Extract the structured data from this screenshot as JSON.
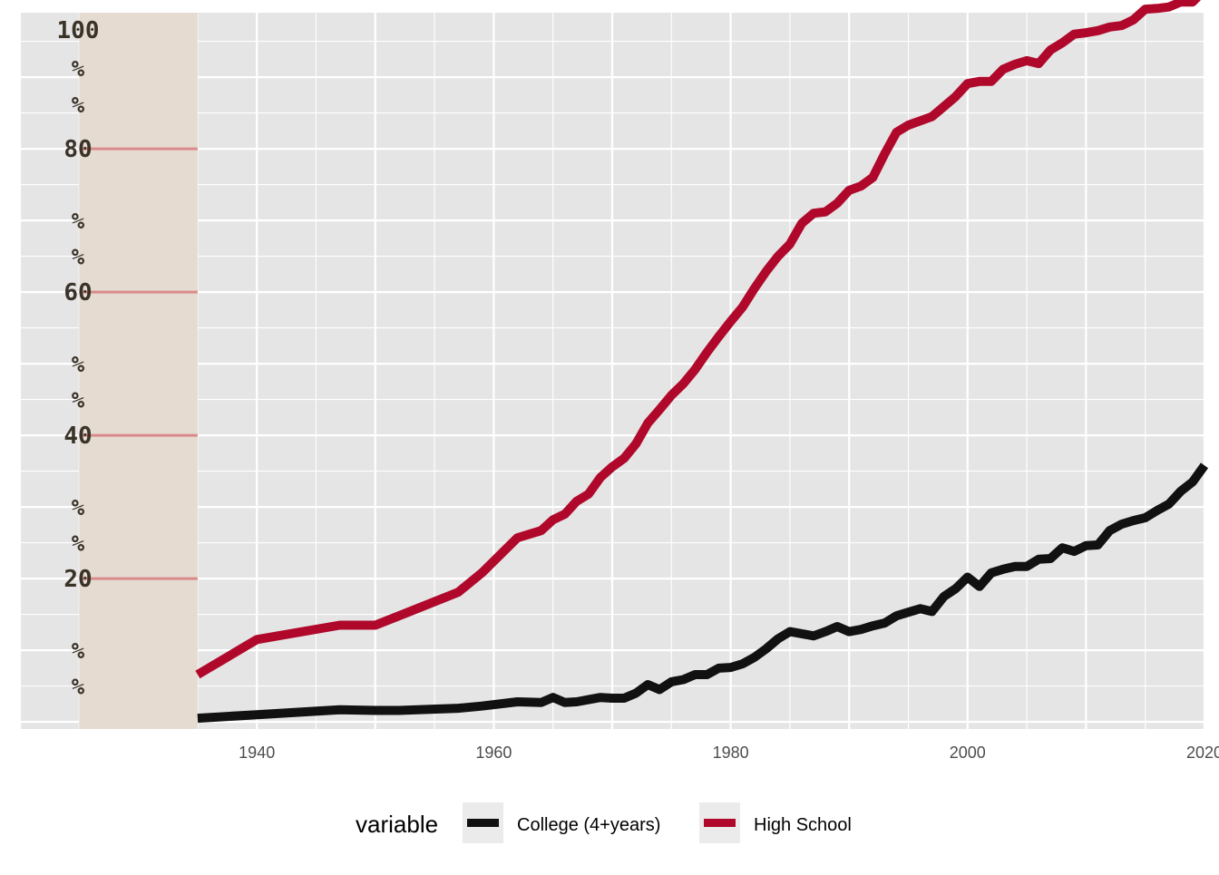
{
  "chart_data": {
    "type": "line",
    "title": "",
    "xlabel": "",
    "ylabel": "",
    "xlim": [
      1920,
      2020
    ],
    "ylim": [
      -1,
      99
    ],
    "x_ticks": [
      1940,
      1960,
      1980,
      2000,
      2020
    ],
    "x_minor": [
      1930,
      1950,
      1970,
      1990,
      2010
    ],
    "y_ticks": [
      {
        "value": 100,
        "label": "100"
      },
      {
        "value": 80,
        "label": "80"
      },
      {
        "value": 60,
        "label": "60"
      },
      {
        "value": 40,
        "label": "40"
      },
      {
        "value": 20,
        "label": "20"
      }
    ],
    "y_pct_marks": [
      90,
      85,
      70,
      65,
      50,
      45,
      30,
      25,
      10,
      5
    ],
    "pct_symbol": "%",
    "grid": true,
    "shaded_region": {
      "x_from": 1925,
      "x_to": 1935
    },
    "reference_lines": [
      80,
      60,
      40,
      20
    ],
    "colors": {
      "panel": "#e5e5e5",
      "grid": "#ffffff",
      "shade": "#e6dbd1",
      "refline": "#d98b8b"
    },
    "legend": {
      "title": "variable",
      "position": "bottom"
    },
    "series": [
      {
        "name": "College (4+years)",
        "color": "#111111",
        "x": [
          1935,
          1940,
          1947,
          1950,
          1952,
          1957,
          1959,
          1962,
          1964,
          1965,
          1966,
          1967,
          1968,
          1969,
          1970,
          1971,
          1972,
          1973,
          1974,
          1975,
          1976,
          1977,
          1978,
          1979,
          1980,
          1981,
          1982,
          1983,
          1984,
          1985,
          1986,
          1987,
          1988,
          1989,
          1990,
          1991,
          1992,
          1993,
          1994,
          1995,
          1996,
          1997,
          1998,
          1999,
          2000,
          2001,
          2002,
          2003,
          2004,
          2005,
          2006,
          2007,
          2008,
          2009,
          2010,
          2011,
          2012,
          2013,
          2014,
          2015,
          2016,
          2017,
          2018,
          2019,
          2020
        ],
        "values": [
          0.5,
          1.0,
          1.7,
          1.6,
          1.6,
          1.9,
          2.2,
          2.8,
          2.7,
          3.4,
          2.7,
          2.8,
          3.1,
          3.4,
          3.3,
          3.3,
          4.0,
          5.2,
          4.5,
          5.6,
          5.9,
          6.6,
          6.6,
          7.5,
          7.6,
          8.1,
          9.0,
          10.2,
          11.6,
          12.6,
          12.3,
          12.0,
          12.6,
          13.3,
          12.6,
          12.9,
          13.4,
          13.8,
          14.8,
          15.3,
          15.8,
          15.4,
          17.5,
          18.6,
          20.2,
          18.9,
          20.8,
          21.3,
          21.7,
          21.7,
          22.7,
          22.8,
          24.3,
          23.8,
          24.6,
          24.7,
          26.7,
          27.6,
          28.1,
          28.5,
          29.5,
          30.4,
          32.2,
          33.5,
          35.8
        ]
      },
      {
        "name": "High School",
        "color": "#b0082a",
        "x": [
          1935,
          1940,
          1947,
          1950,
          1952,
          1957,
          1959,
          1962,
          1964,
          1965,
          1966,
          1967,
          1968,
          1969,
          1970,
          1971,
          1972,
          1973,
          1974,
          1975,
          1976,
          1977,
          1978,
          1979,
          1980,
          1981,
          1982,
          1983,
          1984,
          1985,
          1986,
          1987,
          1988,
          1989,
          1990,
          1991,
          1992,
          1993,
          1994,
          1995,
          1996,
          1997,
          1998,
          1999,
          2000,
          2001,
          2002,
          2003,
          2004,
          2005,
          2006,
          2007,
          2008,
          2009,
          2010,
          2011,
          2012,
          2013,
          2014,
          2015,
          2016,
          2017,
          2018,
          2019,
          2020
        ],
        "values": [
          6.6,
          11.5,
          13.5,
          13.5,
          14.8,
          18.1,
          20.8,
          25.7,
          26.7,
          28.2,
          29.0,
          30.8,
          31.8,
          34.1,
          35.6,
          36.8,
          38.8,
          41.7,
          43.6,
          45.6,
          47.2,
          49.2,
          51.6,
          53.8,
          55.9,
          57.9,
          60.5,
          62.9,
          65.0,
          66.7,
          69.6,
          71.0,
          71.2,
          72.4,
          74.2,
          74.8,
          76.0,
          79.3,
          82.3,
          83.3,
          83.9,
          84.5,
          85.9,
          87.3,
          89.1,
          89.4,
          89.4,
          91.1,
          91.8,
          92.3,
          91.9,
          93.8,
          94.8,
          96.0,
          96.2,
          96.5,
          97.0,
          97.2,
          98.0,
          99.5,
          99.6,
          99.8,
          100.5,
          100.5,
          102.2
        ]
      }
    ]
  }
}
